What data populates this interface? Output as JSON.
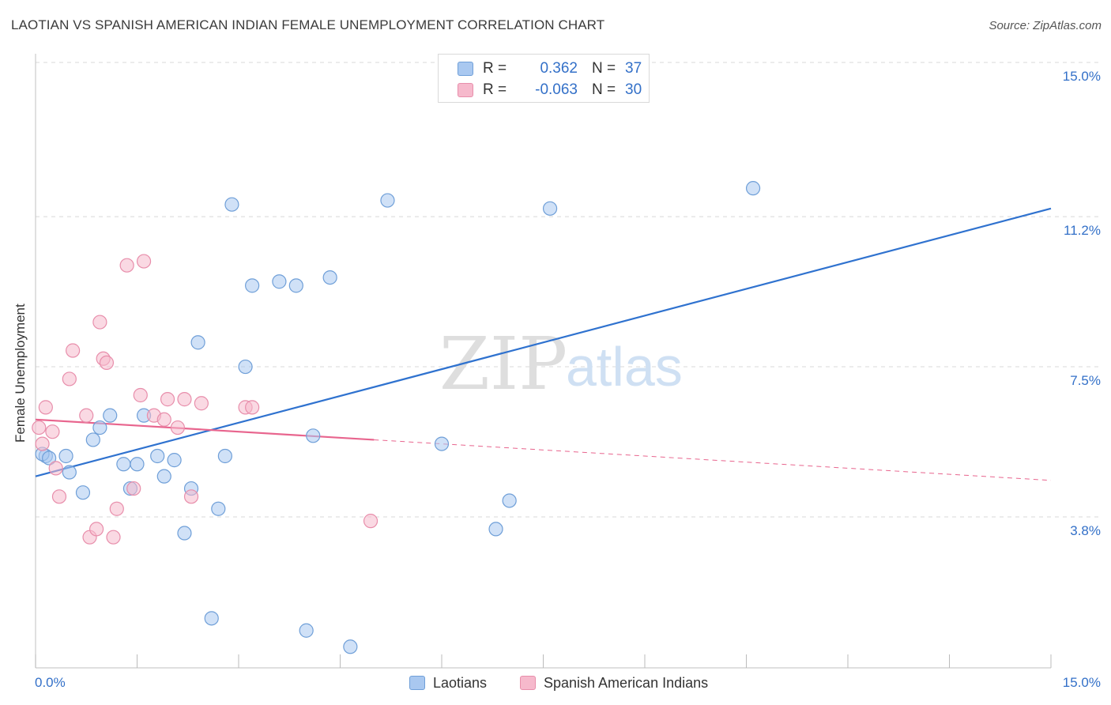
{
  "title": "LAOTIAN VS SPANISH AMERICAN INDIAN FEMALE UNEMPLOYMENT CORRELATION CHART",
  "source": "Source: ZipAtlas.com",
  "watermark": {
    "zip": "ZIP",
    "atlas": "atlas"
  },
  "colors": {
    "laotian_fill": "#a9c8f0",
    "laotian_stroke": "#6f9fd8",
    "laotian_line": "#2f72cf",
    "spanish_fill": "#f6b9cc",
    "spanish_stroke": "#e88eab",
    "spanish_line": "#e8658e",
    "value_text": "#3370c8",
    "grid": "#d8d8d8"
  },
  "stats_legend": {
    "laotian": {
      "r_label": "R =",
      "r_value": "0.362",
      "n_label": "N =",
      "n_value": "37"
    },
    "spanish": {
      "r_label": "R =",
      "r_value": "-0.063",
      "n_label": "N =",
      "n_value": "30"
    }
  },
  "chart_data": {
    "type": "scatter",
    "title": "LAOTIAN VS SPANISH AMERICAN INDIAN FEMALE UNEMPLOYMENT CORRELATION CHART",
    "xlabel": "",
    "ylabel": "Female Unemployment",
    "xlim": [
      0,
      15
    ],
    "ylim": [
      0,
      15.5
    ],
    "x_tick_labels": [
      "0.0%",
      "15.0%"
    ],
    "y_ticks": [
      3.8,
      7.5,
      11.2,
      15.0
    ],
    "y_tick_labels": [
      "3.8%",
      "7.5%",
      "11.2%",
      "15.0%"
    ],
    "grid": true,
    "legend": "bottom-center",
    "series": [
      {
        "name": "Laotians",
        "points": [
          [
            0.15,
            5.3
          ],
          [
            0.45,
            5.3
          ],
          [
            0.5,
            4.9
          ],
          [
            0.7,
            4.4
          ],
          [
            0.85,
            5.7
          ],
          [
            0.95,
            6.0
          ],
          [
            1.1,
            6.3
          ],
          [
            1.3,
            5.1
          ],
          [
            1.4,
            4.5
          ],
          [
            1.5,
            5.1
          ],
          [
            1.6,
            6.3
          ],
          [
            1.8,
            5.3
          ],
          [
            1.9,
            4.8
          ],
          [
            2.05,
            5.2
          ],
          [
            2.2,
            3.4
          ],
          [
            2.3,
            4.5
          ],
          [
            2.4,
            8.1
          ],
          [
            2.6,
            1.3
          ],
          [
            2.7,
            4.0
          ],
          [
            2.8,
            5.3
          ],
          [
            2.9,
            11.5
          ],
          [
            3.1,
            7.5
          ],
          [
            3.2,
            9.5
          ],
          [
            3.6,
            9.6
          ],
          [
            3.85,
            9.5
          ],
          [
            4.0,
            1.0
          ],
          [
            4.1,
            5.8
          ],
          [
            4.35,
            9.7
          ],
          [
            4.65,
            0.6
          ],
          [
            5.2,
            11.6
          ],
          [
            6.0,
            5.6
          ],
          [
            6.8,
            3.5
          ],
          [
            7.0,
            4.2
          ],
          [
            7.6,
            11.4
          ],
          [
            10.6,
            11.9
          ],
          [
            0.1,
            5.35
          ],
          [
            0.2,
            5.25
          ]
        ]
      },
      {
        "name": "Spanish American Indians",
        "points": [
          [
            0.05,
            6.0
          ],
          [
            0.1,
            5.6
          ],
          [
            0.15,
            6.5
          ],
          [
            0.25,
            5.9
          ],
          [
            0.3,
            5.0
          ],
          [
            0.35,
            4.3
          ],
          [
            0.5,
            7.2
          ],
          [
            0.55,
            7.9
          ],
          [
            0.75,
            6.3
          ],
          [
            0.8,
            3.3
          ],
          [
            0.9,
            3.5
          ],
          [
            0.95,
            8.6
          ],
          [
            1.0,
            7.7
          ],
          [
            1.05,
            7.6
          ],
          [
            1.15,
            3.3
          ],
          [
            1.2,
            4.0
          ],
          [
            1.35,
            10.0
          ],
          [
            1.45,
            4.5
          ],
          [
            1.55,
            6.8
          ],
          [
            1.6,
            10.1
          ],
          [
            1.75,
            6.3
          ],
          [
            1.9,
            6.2
          ],
          [
            1.95,
            6.7
          ],
          [
            2.1,
            6.0
          ],
          [
            2.2,
            6.7
          ],
          [
            2.3,
            4.3
          ],
          [
            2.45,
            6.6
          ],
          [
            3.1,
            6.5
          ],
          [
            3.2,
            6.5
          ],
          [
            4.95,
            3.7
          ]
        ]
      }
    ],
    "trend_lines": [
      {
        "series": "Laotians",
        "x": [
          0,
          15
        ],
        "y": [
          4.8,
          11.4
        ],
        "style": "solid"
      },
      {
        "series": "Spanish American Indians",
        "x": [
          0,
          5
        ],
        "y": [
          6.2,
          5.7
        ],
        "style": "solid"
      },
      {
        "series": "Spanish American Indians",
        "x": [
          5,
          15
        ],
        "y": [
          5.7,
          4.7
        ],
        "style": "dashed"
      }
    ]
  },
  "bottom_legend": {
    "laotian_label": "Laotians",
    "spanish_label": "Spanish American Indians"
  }
}
